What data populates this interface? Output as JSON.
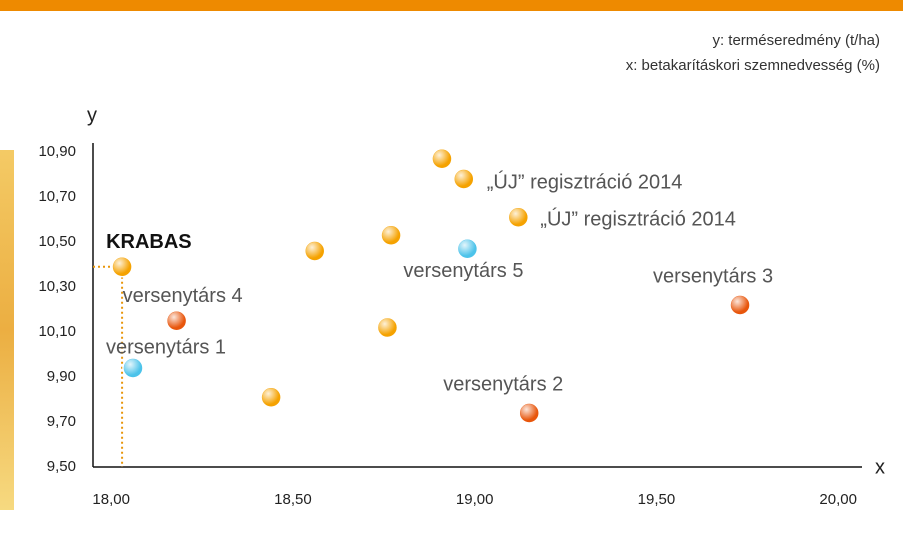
{
  "chart_data": {
    "type": "scatter",
    "notes": [
      "y: terméseredmény (t/ha)",
      "x: betakarításkori szemnedvesség (%)"
    ],
    "y_label": "y",
    "x_label": "x",
    "x": [
      18.03,
      18.18,
      18.06,
      18.44,
      18.56,
      18.77,
      18.76,
      18.91,
      18.97,
      18.98,
      19.12,
      19.15,
      19.73
    ],
    "y": [
      10.39,
      10.15,
      9.94,
      9.81,
      10.46,
      10.53,
      10.12,
      10.87,
      10.78,
      10.47,
      10.61,
      9.74,
      10.22
    ],
    "colors": [
      "#f5a200",
      "#e8560c",
      "#4cc3ea",
      "#f5a200",
      "#f5a200",
      "#f5a200",
      "#f5a200",
      "#f5a200",
      "#f5a200",
      "#4cc3ea",
      "#f5a200",
      "#e8560c",
      "#e8560c"
    ],
    "point_labels": [
      "KRABAS",
      "versenytárs 4",
      "versenytárs 1",
      null,
      null,
      null,
      null,
      null,
      "„ÚJ” regisztráció 2014",
      "versenytárs 5",
      "„ÚJ” regisztráció 2014",
      "versenytárs 2",
      "versenytárs 3"
    ],
    "xlim": [
      17.95,
      20.06
    ],
    "ylim": [
      9.5,
      10.94
    ],
    "xticks": [
      {
        "value": 18,
        "label": "18,00"
      },
      {
        "value": 18.5,
        "label": "18,50"
      },
      {
        "value": 19,
        "label": "19,00"
      },
      {
        "value": 19.5,
        "label": "19,50"
      },
      {
        "value": 20,
        "label": "20,00"
      }
    ],
    "yticks": [
      {
        "value": 9.5,
        "label": "9,50"
      },
      {
        "value": 9.7,
        "label": "9,70"
      },
      {
        "value": 9.9,
        "label": "9,90"
      },
      {
        "value": 10.1,
        "label": "10,10"
      },
      {
        "value": 10.3,
        "label": "10,30"
      },
      {
        "value": 10.5,
        "label": "10,50"
      },
      {
        "value": 10.7,
        "label": "10,70"
      },
      {
        "value": 10.9,
        "label": "10,90"
      }
    ]
  }
}
